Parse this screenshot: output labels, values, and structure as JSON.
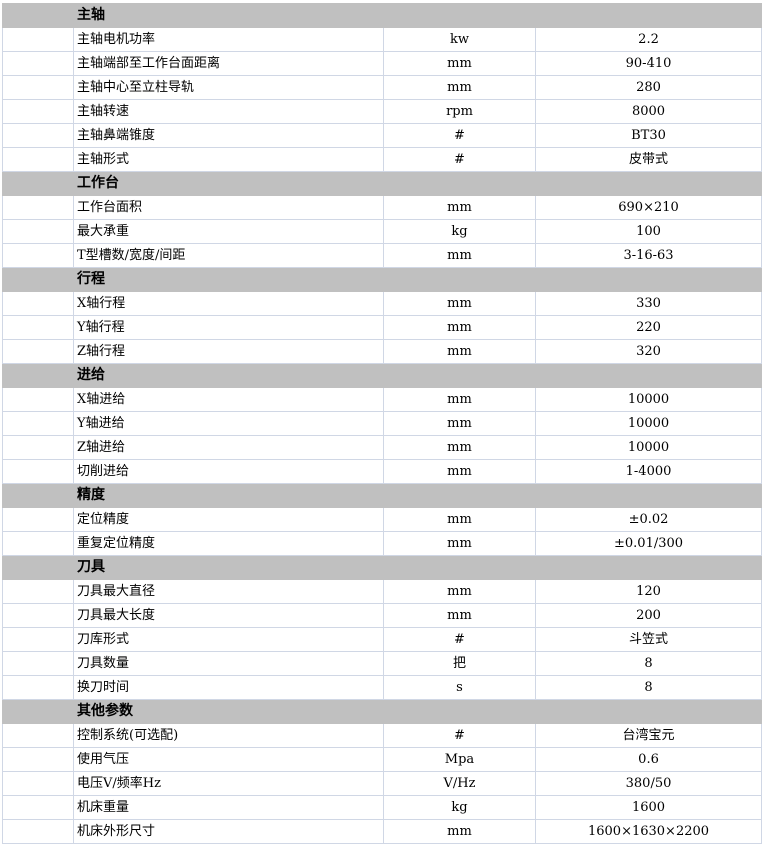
{
  "sections": [
    {
      "title": "主轴",
      "rows": [
        [
          "主轴电机功率",
          "kw",
          "2.2"
        ],
        [
          "主轴端部至工作台面距离",
          "mm",
          "90-410"
        ],
        [
          "主轴中心至立柱导轨",
          "mm",
          "280"
        ],
        [
          "主轴转速",
          "rpm",
          "8000"
        ],
        [
          "主轴鼻端锥度",
          "#",
          "BT30"
        ],
        [
          "主轴形式",
          "#",
          "皮带式"
        ]
      ]
    },
    {
      "title": "工作台",
      "rows": [
        [
          "工作台面积",
          "mm",
          "690×210"
        ],
        [
          "最大承重",
          "kg",
          "100"
        ],
        [
          "T型槽数/宽度/间距",
          "mm",
          "3-16-63"
        ]
      ]
    },
    {
      "title": "行程",
      "rows": [
        [
          "X轴行程",
          "mm",
          "330"
        ],
        [
          "Y轴行程",
          "mm",
          "220"
        ],
        [
          "Z轴行程",
          "mm",
          "320"
        ]
      ]
    },
    {
      "title": "进给",
      "rows": [
        [
          "X轴进给",
          "mm",
          "10000"
        ],
        [
          "Y轴进给",
          "mm",
          "10000"
        ],
        [
          "Z轴进给",
          "mm",
          "10000"
        ],
        [
          "切削进给",
          "mm",
          "1-4000"
        ]
      ]
    },
    {
      "title": "精度",
      "rows": [
        [
          "定位精度",
          "mm",
          "±0.02"
        ],
        [
          "重复定位精度",
          "mm",
          "±0.01/300"
        ]
      ]
    },
    {
      "title": "刀具",
      "rows": [
        [
          "刀具最大直径",
          "mm",
          "120"
        ],
        [
          "刀具最大长度",
          "mm",
          "200"
        ],
        [
          "刀库形式",
          "#",
          "斗笠式"
        ],
        [
          "刀具数量",
          "把",
          "8"
        ],
        [
          "换刀时间",
          "s",
          "8"
        ]
      ]
    },
    {
      "title": "其他参数",
      "rows": [
        [
          "控制系统(可选配)",
          "#",
          "台湾宝元"
        ],
        [
          "使用气压",
          "Mpa",
          "0.6"
        ],
        [
          "电压V/频率Hz",
          "V/Hz",
          "380/50"
        ],
        [
          "机床重量",
          "kg",
          "1600"
        ],
        [
          "机床外形尺寸",
          "mm",
          "1600×1630×2200"
        ]
      ]
    }
  ]
}
